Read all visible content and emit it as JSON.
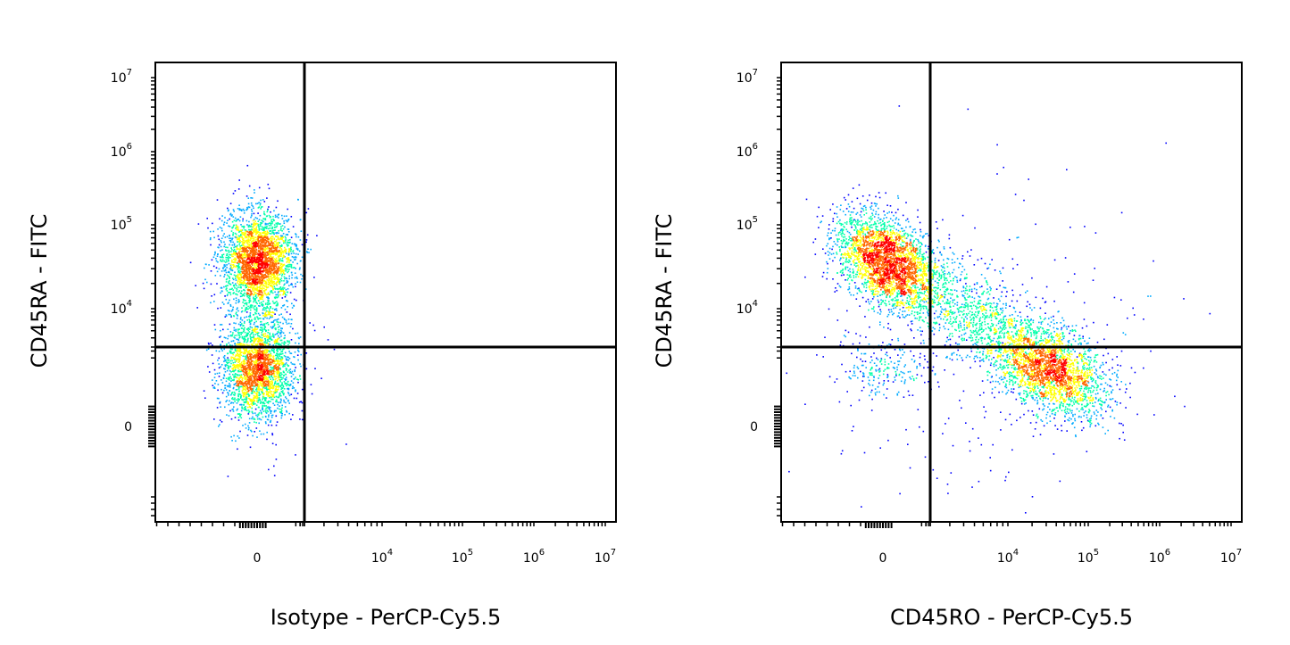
{
  "chart_data": [
    {
      "type": "scatter",
      "title": "",
      "xlabel": "Isotype - PerCP-Cy5.5",
      "ylabel": "CD45RA - FITC",
      "x_scale": "biexponential",
      "y_scale": "biexponential",
      "x_ticks": [
        {
          "base": "0",
          "exp": ""
        },
        {
          "base": "10",
          "exp": "4"
        },
        {
          "base": "10",
          "exp": "5"
        },
        {
          "base": "10",
          "exp": "6"
        },
        {
          "base": "10",
          "exp": "7"
        }
      ],
      "y_ticks": [
        {
          "base": "10",
          "exp": "7"
        },
        {
          "base": "10",
          "exp": "6"
        },
        {
          "base": "10",
          "exp": "5"
        },
        {
          "base": "10",
          "exp": "4"
        },
        {
          "base": "0",
          "exp": ""
        }
      ],
      "quadrant_gate": {
        "x": 2000,
        "y": 3000
      },
      "populations": [
        {
          "x_center": 0,
          "y_center": 40000,
          "density": "high"
        },
        {
          "x_center": 0,
          "y_center": 300,
          "density": "high"
        }
      ],
      "grid": false,
      "legend": "none"
    },
    {
      "type": "scatter",
      "title": "",
      "xlabel": "CD45RO - PerCP-Cy5.5",
      "ylabel": "CD45RA - FITC",
      "x_scale": "biexponential",
      "y_scale": "biexponential",
      "x_ticks": [
        {
          "base": "0",
          "exp": ""
        },
        {
          "base": "10",
          "exp": "4"
        },
        {
          "base": "10",
          "exp": "5"
        },
        {
          "base": "10",
          "exp": "6"
        },
        {
          "base": "10",
          "exp": "7"
        }
      ],
      "y_ticks": [
        {
          "base": "10",
          "exp": "7"
        },
        {
          "base": "10",
          "exp": "6"
        },
        {
          "base": "10",
          "exp": "5"
        },
        {
          "base": "10",
          "exp": "4"
        },
        {
          "base": "0",
          "exp": ""
        }
      ],
      "quadrant_gate": {
        "x": 2000,
        "y": 3000
      },
      "populations": [
        {
          "x_center": 0,
          "y_center": 40000,
          "density": "high"
        },
        {
          "x_center": 35000,
          "y_center": 300,
          "density": "high"
        },
        {
          "x_center": 3000,
          "y_center": 3000,
          "density": "medium"
        },
        {
          "x_center": 0,
          "y_center": 300,
          "density": "low"
        }
      ],
      "grid": false,
      "legend": "none"
    }
  ],
  "colors": {
    "density_scale": [
      "#0000ff",
      "#00aaff",
      "#00ffaa",
      "#ffff00",
      "#ff6600",
      "#ff0000"
    ],
    "axis": "#000000"
  }
}
